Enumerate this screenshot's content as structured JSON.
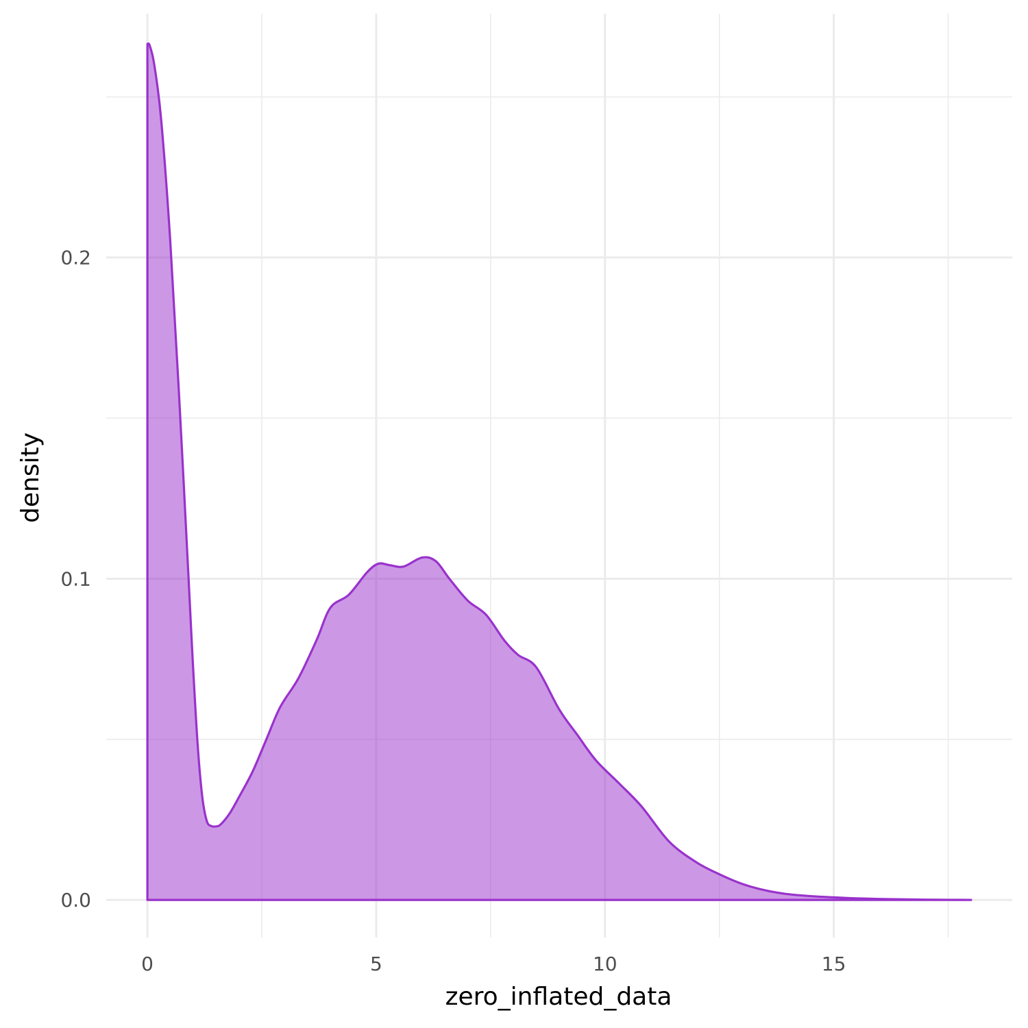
{
  "chart_data": {
    "type": "area",
    "xlabel": "zero_inflated_data",
    "ylabel": "density",
    "xlim": [
      -0.9,
      18.9
    ],
    "ylim": [
      -0.0117,
      0.2759
    ],
    "x_ticks": [
      0,
      5,
      10,
      15
    ],
    "x_tick_labels": [
      "0",
      "5",
      "10",
      "15"
    ],
    "x_minor_ticks": [
      2.5,
      7.5,
      12.5,
      17.5
    ],
    "y_ticks": [
      0.0,
      0.1,
      0.2
    ],
    "y_tick_labels": [
      "0.0",
      "0.1",
      "0.2"
    ],
    "y_minor_ticks": [
      0.05,
      0.15,
      0.25
    ],
    "grid": true,
    "legend": "none",
    "series": [
      {
        "x": [
          0,
          0.05,
          0.15,
          0.3,
          0.5,
          0.7,
          0.9,
          1.0,
          1.1,
          1.2,
          1.3,
          1.4,
          1.5,
          1.6,
          1.8,
          2.0,
          2.3,
          2.6,
          2.9,
          3.3,
          3.7,
          4.0,
          4.4,
          4.8,
          5.05,
          5.3,
          5.6,
          6.0,
          6.3,
          6.6,
          7.0,
          7.4,
          7.8,
          8.1,
          8.5,
          9.0,
          9.4,
          9.8,
          10.3,
          10.8,
          11.4,
          12.0,
          12.5,
          13.0,
          13.5,
          14.0,
          14.5,
          15.0,
          15.5,
          16.0,
          16.5,
          17.0,
          17.5,
          18.0
        ],
        "y": [
          0.2665,
          0.266,
          0.26,
          0.243,
          0.205,
          0.155,
          0.1,
          0.072,
          0.048,
          0.032,
          0.0245,
          0.023,
          0.0229,
          0.0235,
          0.027,
          0.032,
          0.04,
          0.05,
          0.06,
          0.069,
          0.081,
          0.091,
          0.095,
          0.102,
          0.1047,
          0.1042,
          0.1038,
          0.1066,
          0.1055,
          0.1,
          0.0932,
          0.0888,
          0.0808,
          0.0763,
          0.0724,
          0.0593,
          0.0513,
          0.0435,
          0.0364,
          0.0291,
          0.0182,
          0.0117,
          0.008,
          0.005,
          0.003,
          0.0018,
          0.0012,
          0.0008,
          0.0005,
          0.0003,
          0.0002,
          0.0001,
          5e-05,
          0.0
        ]
      }
    ],
    "colors": {
      "line": "#9932cc",
      "fill": "#9932cc",
      "fill_opacity": 0.5,
      "grid": "#ebebeb",
      "background": "#ffffff"
    }
  }
}
